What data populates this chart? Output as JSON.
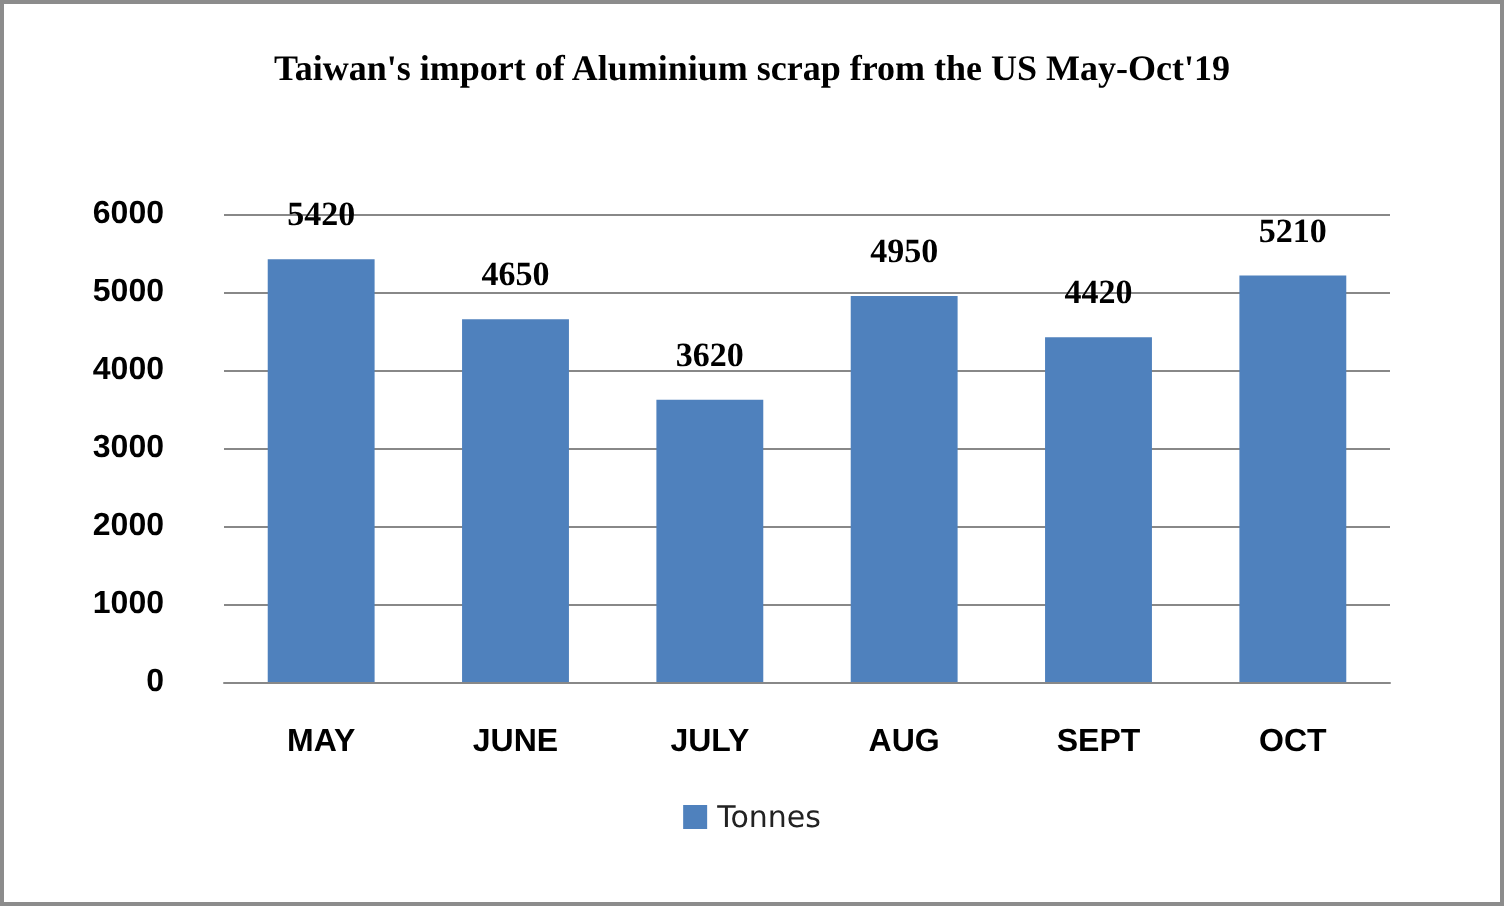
{
  "chart_data": {
    "type": "bar",
    "title": "Taiwan's import of Aluminium scrap from the US May-Oct'19",
    "categories": [
      "MAY",
      "JUNE",
      "JULY",
      "AUG",
      "SEPT",
      "OCT"
    ],
    "series": [
      {
        "name": "Tonnes",
        "color": "#4f81bd",
        "values": [
          5420,
          4650,
          3620,
          4950,
          4420,
          5210
        ]
      }
    ],
    "ylim": [
      0,
      6000
    ],
    "yticks": [
      0,
      1000,
      2000,
      3000,
      4000,
      5000,
      6000
    ],
    "grid": "y",
    "legend": "bottom",
    "data_labels": true
  }
}
